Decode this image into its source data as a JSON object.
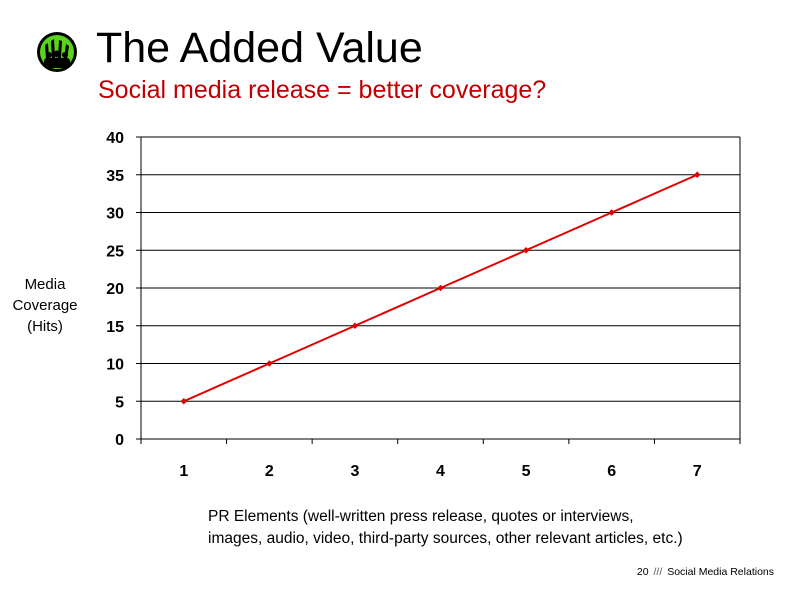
{
  "slide": {
    "title": "The Added Value",
    "subtitle": "Social media release = better coverage?",
    "page_number": "20",
    "separator": "///",
    "footer_text": "Social Media Relations",
    "logo_icon": "green-crowd-hands-icon"
  },
  "chart_data": {
    "type": "line",
    "x": [
      1,
      2,
      3,
      4,
      5,
      6,
      7
    ],
    "categories": [
      "1",
      "2",
      "3",
      "4",
      "5",
      "6",
      "7"
    ],
    "series": [
      {
        "values": [
          5,
          10,
          15,
          20,
          25,
          30,
          35
        ],
        "color": "#e00000"
      }
    ],
    "ylabel_lines": [
      "Media",
      "Coverage",
      "(Hits)"
    ],
    "xlabel": "PR Elements (well-written press release, quotes or interviews, images, audio, video, third-party sources, other relevant articles, etc.)",
    "ylim": [
      0,
      40
    ],
    "yticks": [
      0,
      5,
      10,
      15,
      20,
      25,
      30,
      35,
      40
    ],
    "grid": true,
    "legend": "none"
  }
}
